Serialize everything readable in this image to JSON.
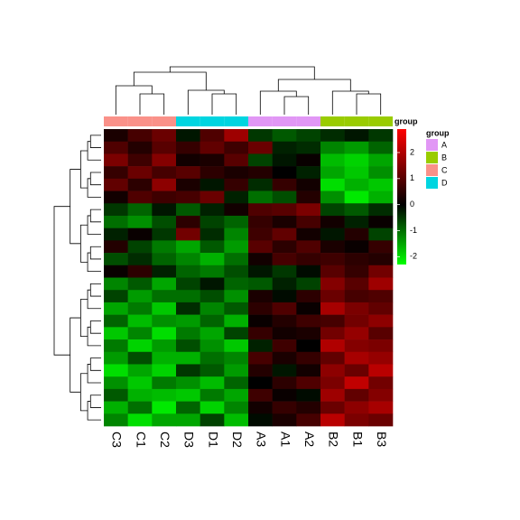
{
  "chart_data": {
    "type": "heatmap",
    "columns": [
      "C3",
      "C1",
      "C2",
      "D3",
      "D1",
      "D2",
      "A3",
      "A1",
      "A2",
      "B2",
      "B1",
      "B3"
    ],
    "column_groups": [
      "C",
      "C",
      "C",
      "D",
      "D",
      "D",
      "A",
      "A",
      "A",
      "B",
      "B",
      "B"
    ],
    "annotation_label": "group",
    "legend_title": "group",
    "groups": [
      {
        "name": "A",
        "color": "#E197F5"
      },
      {
        "name": "B",
        "color": "#99CC00"
      },
      {
        "name": "C",
        "color": "#FA9189"
      },
      {
        "name": "D",
        "color": "#00D5E0"
      }
    ],
    "colors": [
      "#00FF00",
      "#000000",
      "#FF0000"
    ],
    "clim": [
      -2.3,
      2.9
    ],
    "colorbar_ticks": [
      -2,
      -1,
      0,
      1,
      2
    ],
    "values": [
      [
        0.3,
        0.8,
        1.2,
        -0.2,
        0.9,
        1.8,
        -0.5,
        -0.8,
        -0.6,
        -0.4,
        -0.2,
        -0.5
      ],
      [
        0.9,
        0.4,
        1.0,
        0.6,
        1.1,
        0.7,
        1.2,
        -0.3,
        -0.4,
        -1.2,
        -1.4,
        -0.9
      ],
      [
        1.4,
        0.7,
        1.5,
        0.2,
        0.3,
        1.0,
        -0.6,
        -0.2,
        0.1,
        -1.7,
        -1.9,
        -1.5
      ],
      [
        0.6,
        1.2,
        0.8,
        1.0,
        0.5,
        0.3,
        0.4,
        0.0,
        -0.3,
        -1.5,
        -1.8,
        -1.3
      ],
      [
        1.1,
        0.5,
        1.6,
        0.3,
        -0.2,
        0.6,
        -0.4,
        0.6,
        0.2,
        -2.0,
        -1.6,
        -1.8
      ],
      [
        0.2,
        0.9,
        0.7,
        0.8,
        1.2,
        -0.3,
        -1.0,
        -0.7,
        0.4,
        -1.3,
        -2.1,
        -1.6
      ],
      [
        -0.5,
        -0.9,
        -0.2,
        -0.8,
        -0.3,
        0.2,
        0.9,
        1.0,
        1.4,
        -0.6,
        -0.8,
        -0.4
      ],
      [
        -1.0,
        -1.3,
        -0.7,
        0.5,
        -0.6,
        -0.9,
        0.6,
        0.3,
        0.8,
        0.2,
        -0.3,
        0.1
      ],
      [
        -0.3,
        0.1,
        -0.5,
        1.3,
        -0.4,
        -1.2,
        0.7,
        1.1,
        0.2,
        -0.2,
        0.4,
        -0.6
      ],
      [
        0.4,
        -0.6,
        -1.1,
        -1.5,
        -0.8,
        -1.4,
        1.0,
        0.5,
        0.9,
        0.3,
        0.1,
        0.6
      ],
      [
        -0.7,
        -0.4,
        -0.9,
        -1.2,
        -1.6,
        -1.0,
        0.2,
        0.8,
        0.6,
        0.7,
        0.5,
        0.4
      ],
      [
        0.1,
        0.5,
        -0.3,
        -0.9,
        -1.1,
        -0.7,
        -0.2,
        -0.5,
        -0.1,
        1.0,
        0.6,
        1.3
      ],
      [
        -1.2,
        -0.8,
        -1.5,
        -0.6,
        -0.2,
        -0.9,
        -0.8,
        -0.3,
        -0.6,
        1.5,
        1.0,
        1.8
      ],
      [
        -0.6,
        -1.4,
        -1.0,
        -1.0,
        -0.7,
        -1.3,
        0.3,
        -0.1,
        0.5,
        1.2,
        0.8,
        0.9
      ],
      [
        -1.5,
        -1.1,
        -1.8,
        -0.4,
        -1.2,
        -0.8,
        0.5,
        0.9,
        0.1,
        1.9,
        1.4,
        1.1
      ],
      [
        -0.9,
        -1.7,
        -1.3,
        -1.4,
        -0.9,
        -1.6,
        0.1,
        0.4,
        0.7,
        0.8,
        1.3,
        1.6
      ],
      [
        -1.8,
        -1.2,
        -2.0,
        -1.1,
        -1.5,
        -0.6,
        0.6,
        0.2,
        0.3,
        1.3,
        1.7,
        1.0
      ],
      [
        -1.1,
        -1.9,
        -1.4,
        -0.7,
        -1.3,
        -1.8,
        -0.3,
        0.7,
        0.0,
        2.0,
        1.5,
        1.4
      ],
      [
        -1.4,
        -0.7,
        -1.6,
        -1.6,
        -1.0,
        -1.2,
        0.8,
        0.3,
        0.6,
        1.1,
        1.9,
        1.7
      ],
      [
        -2.0,
        -1.5,
        -1.9,
        -0.5,
        -0.8,
        -1.4,
        0.4,
        -0.2,
        0.2,
        1.6,
        1.2,
        2.1
      ],
      [
        -1.3,
        -1.8,
        -1.1,
        -1.3,
        -1.7,
        -0.9,
        0.0,
        0.5,
        0.9,
        1.4,
        2.2,
        1.3
      ],
      [
        -0.8,
        -1.6,
        -1.7,
        -1.8,
        -1.1,
        -1.5,
        0.7,
        0.1,
        -0.1,
        1.8,
        1.1,
        1.5
      ],
      [
        -1.6,
        -1.0,
        -2.1,
        -0.9,
        -1.9,
        -1.2,
        0.2,
        0.6,
        0.4,
        1.2,
        1.6,
        1.9
      ],
      [
        -1.2,
        -2.0,
        -1.5,
        -1.5,
        -0.6,
        -1.7,
        -0.1,
        0.3,
        0.8,
        2.1,
        1.4,
        1.2
      ]
    ]
  }
}
